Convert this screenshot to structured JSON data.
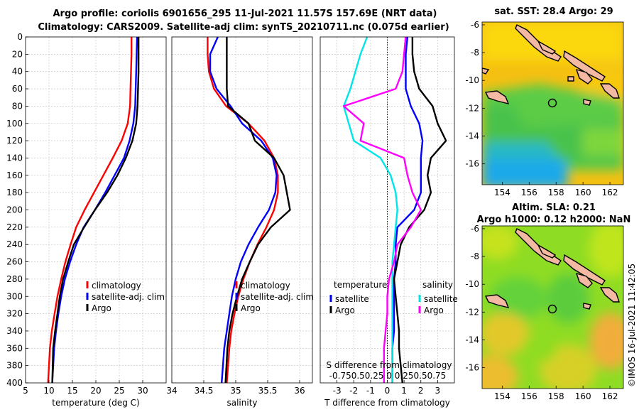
{
  "figure": {
    "title_line1": "Argo profile: coriolis 6901656_295 11-Jul-2021 11.57S 157.69E (NRT data)",
    "title_line2": "Climatology: CARS2009. Satellite-adj clim: synTS_20210711.nc (0.075d earlier)",
    "watermark": "©IMOS 16-Jul-2021 11:42:05"
  },
  "chart_data": [
    {
      "id": "temperature",
      "type": "line",
      "xlabel": "temperature (deg C)",
      "ylabel": "",
      "xlim": [
        5,
        35
      ],
      "ylim": [
        400,
        0
      ],
      "xticks": [
        5,
        10,
        15,
        20,
        25,
        30
      ],
      "yticks": [
        0,
        20,
        40,
        60,
        80,
        100,
        120,
        140,
        160,
        180,
        200,
        220,
        240,
        260,
        280,
        300,
        320,
        340,
        360,
        380,
        400
      ],
      "grid": true,
      "legend": [
        {
          "label": "climatology",
          "color": "#ff0000"
        },
        {
          "label": "satellite-adj. clim",
          "color": "#0000ff"
        },
        {
          "label": "Argo",
          "color": "#000000"
        }
      ],
      "series": [
        {
          "name": "climatology",
          "color": "#ff0000",
          "x": [
            27.6,
            27.6,
            27.5,
            27.4,
            27.3,
            26.8,
            25.5,
            23.6,
            21.6,
            19.6,
            17.6,
            15.8,
            14.6,
            13.5,
            12.6,
            11.8,
            11.2,
            10.6,
            10.2,
            9.8
          ],
          "y": [
            0,
            20,
            40,
            60,
            80,
            100,
            120,
            140,
            160,
            180,
            200,
            220,
            240,
            260,
            280,
            300,
            320,
            340,
            360,
            400
          ]
        },
        {
          "name": "satellite-adj. clim",
          "color": "#0000ff",
          "x": [
            28.8,
            28.7,
            28.6,
            28.5,
            28.4,
            28.0,
            27.2,
            26.0,
            24.0,
            22.0,
            19.8,
            17.4,
            15.8,
            14.5,
            13.4,
            12.6,
            12.0,
            11.5,
            11.1,
            10.7
          ],
          "y": [
            0,
            20,
            40,
            60,
            80,
            100,
            120,
            140,
            160,
            180,
            200,
            220,
            240,
            260,
            280,
            300,
            320,
            340,
            360,
            400
          ]
        },
        {
          "name": "Argo",
          "color": "#000000",
          "x": [
            29.1,
            29.1,
            29.1,
            29.0,
            28.9,
            28.6,
            27.8,
            26.4,
            24.6,
            22.4,
            19.8,
            17.5,
            15.3,
            14.1,
            13.0,
            12.3,
            11.8,
            11.3,
            10.9,
            10.7
          ],
          "y": [
            0,
            20,
            40,
            60,
            80,
            100,
            120,
            140,
            160,
            180,
            200,
            220,
            240,
            260,
            280,
            300,
            320,
            340,
            360,
            400
          ]
        }
      ]
    },
    {
      "id": "salinity",
      "type": "line",
      "xlabel": "salinity",
      "ylabel": "",
      "xlim": [
        34,
        36.2
      ],
      "ylim": [
        400,
        0
      ],
      "xticks": [
        34,
        34.5,
        35,
        35.5,
        36
      ],
      "grid": true,
      "legend": [
        {
          "label": "climatology",
          "color": "#ff0000"
        },
        {
          "label": "satellite-adj. clim",
          "color": "#0000ff"
        },
        {
          "label": "Argo",
          "color": "#000000"
        }
      ],
      "series": [
        {
          "name": "climatology",
          "color": "#ff0000",
          "x": [
            34.56,
            34.56,
            34.58,
            34.66,
            34.85,
            35.2,
            35.45,
            35.6,
            35.66,
            35.66,
            35.6,
            35.48,
            35.34,
            35.22,
            35.12,
            35.04,
            34.98,
            34.93,
            34.9,
            34.86
          ],
          "y": [
            0,
            20,
            40,
            60,
            80,
            100,
            120,
            140,
            160,
            180,
            200,
            220,
            240,
            260,
            280,
            300,
            320,
            340,
            360,
            400
          ]
        },
        {
          "name": "satellite-adj. clim",
          "color": "#0000ff",
          "x": [
            34.72,
            34.6,
            34.6,
            34.7,
            34.92,
            35.1,
            35.4,
            35.58,
            35.64,
            35.62,
            35.52,
            35.35,
            35.2,
            35.08,
            35.0,
            34.94,
            34.9,
            34.86,
            34.82,
            34.78
          ],
          "y": [
            0,
            20,
            40,
            60,
            80,
            100,
            120,
            140,
            160,
            180,
            200,
            220,
            240,
            260,
            280,
            300,
            320,
            340,
            360,
            400
          ]
        },
        {
          "name": "Argo",
          "color": "#000000",
          "x": [
            34.86,
            34.86,
            34.86,
            34.86,
            34.88,
            35.2,
            35.3,
            35.6,
            35.75,
            35.8,
            35.85,
            35.55,
            35.35,
            35.22,
            35.1,
            35.02,
            34.95,
            34.9,
            34.87,
            34.84
          ],
          "y": [
            0,
            20,
            40,
            60,
            80,
            100,
            120,
            140,
            160,
            180,
            200,
            220,
            240,
            260,
            280,
            300,
            320,
            340,
            360,
            400
          ]
        }
      ]
    },
    {
      "id": "difference",
      "type": "line",
      "xlabel": "T difference from climatology",
      "secondary_xlabel": "S difference from climatology",
      "secondary_ticks": "-0.750.50.25 0 0.250.50.75",
      "ylabel": "",
      "xlim": [
        -4,
        4
      ],
      "ylim": [
        400,
        0
      ],
      "xticks": [
        -3,
        -2,
        -1,
        0,
        1,
        2,
        3
      ],
      "grid": true,
      "legend_left_title": "temperature",
      "legend_right_title": "salinity",
      "legend": [
        {
          "label": "satellite",
          "color": "#0000ff",
          "side": "left"
        },
        {
          "label": "Argo",
          "color": "#000000",
          "side": "left"
        },
        {
          "label": "satellite",
          "color": "#00e5e5",
          "side": "right"
        },
        {
          "label": "Argo",
          "color": "#ff00ff",
          "side": "right"
        }
      ],
      "series": [
        {
          "name": "temperature satellite",
          "color": "#0000ff",
          "x": [
            1.2,
            1.1,
            1.1,
            1.1,
            1.4,
            1.9,
            2.1,
            2.0,
            2.0,
            2.0,
            1.6,
            0.6,
            0.5,
            0.5,
            0.4,
            0.4,
            0.4,
            0.4,
            0.3,
            0.3
          ],
          "y": [
            0,
            20,
            40,
            60,
            80,
            100,
            120,
            140,
            160,
            180,
            200,
            220,
            240,
            260,
            280,
            300,
            320,
            340,
            360,
            400
          ]
        },
        {
          "name": "temperature Argo",
          "color": "#000000",
          "x": [
            1.5,
            1.5,
            1.6,
            1.9,
            2.7,
            3.0,
            3.5,
            2.6,
            2.4,
            2.6,
            2.2,
            1.3,
            0.8,
            0.6,
            0.4,
            0.5,
            0.6,
            0.7,
            0.7,
            0.9
          ],
          "y": [
            0,
            20,
            40,
            60,
            80,
            100,
            120,
            140,
            160,
            180,
            200,
            220,
            240,
            260,
            280,
            300,
            320,
            340,
            360,
            400
          ]
        },
        {
          "name": "salinity satellite",
          "color": "#00e5e5",
          "x": [
            -1.2,
            -1.6,
            -1.9,
            -2.2,
            -2.6,
            -2.3,
            -2.0,
            -0.4,
            0.2,
            0.5,
            0.6,
            0.5,
            0.4,
            0.3,
            0.3,
            0.3,
            0.3,
            0.3,
            0.3,
            0.3
          ],
          "y": [
            0,
            20,
            40,
            60,
            80,
            100,
            120,
            140,
            160,
            180,
            200,
            220,
            240,
            260,
            280,
            300,
            320,
            340,
            360,
            400
          ]
        },
        {
          "name": "salinity Argo",
          "color": "#ff00ff",
          "x": [
            1.1,
            1.0,
            0.9,
            0.5,
            -2.6,
            -1.4,
            -1.6,
            1.0,
            1.2,
            1.5,
            2.0,
            1.4,
            0.6,
            0.4,
            0.1,
            0.0,
            0.0,
            -0.1,
            -0.2,
            -0.2
          ],
          "y": [
            0,
            20,
            40,
            60,
            80,
            100,
            120,
            140,
            160,
            180,
            200,
            220,
            240,
            260,
            280,
            300,
            320,
            340,
            360,
            400
          ]
        }
      ]
    },
    {
      "id": "sst_map",
      "type": "heatmap",
      "title": "sat. SST: 28.4 Argo: 29",
      "xlim": [
        152.5,
        163
      ],
      "ylim": [
        -17.5,
        -5.8
      ],
      "xticks": [
        154,
        156,
        158,
        160,
        162
      ],
      "yticks": [
        -6,
        -8,
        -10,
        -12,
        -14,
        -16
      ],
      "argo_position": {
        "lon": 157.69,
        "lat": -11.57
      },
      "colors": {
        "warm": "#f7c60e",
        "mid": "#6ed84a",
        "cool": "#1ab3e8",
        "land": "#f4b9a2"
      }
    },
    {
      "id": "sla_map",
      "type": "heatmap",
      "title": "Altim. SLA: 0.21",
      "subtitle": "Argo h1000: 0.12 h2000: NaN",
      "xlim": [
        152.5,
        163
      ],
      "ylim": [
        -17.5,
        -5.8
      ],
      "xticks": [
        154,
        156,
        158,
        160,
        162
      ],
      "yticks": [
        -6,
        -8,
        -10,
        -12,
        -14,
        -16
      ],
      "argo_position": {
        "lon": 157.69,
        "lat": -11.57
      },
      "colors": {
        "warm": "#f3c325",
        "mid": "#9ae21e",
        "cool": "#57cf36",
        "land": "#f4b9a2"
      }
    }
  ]
}
